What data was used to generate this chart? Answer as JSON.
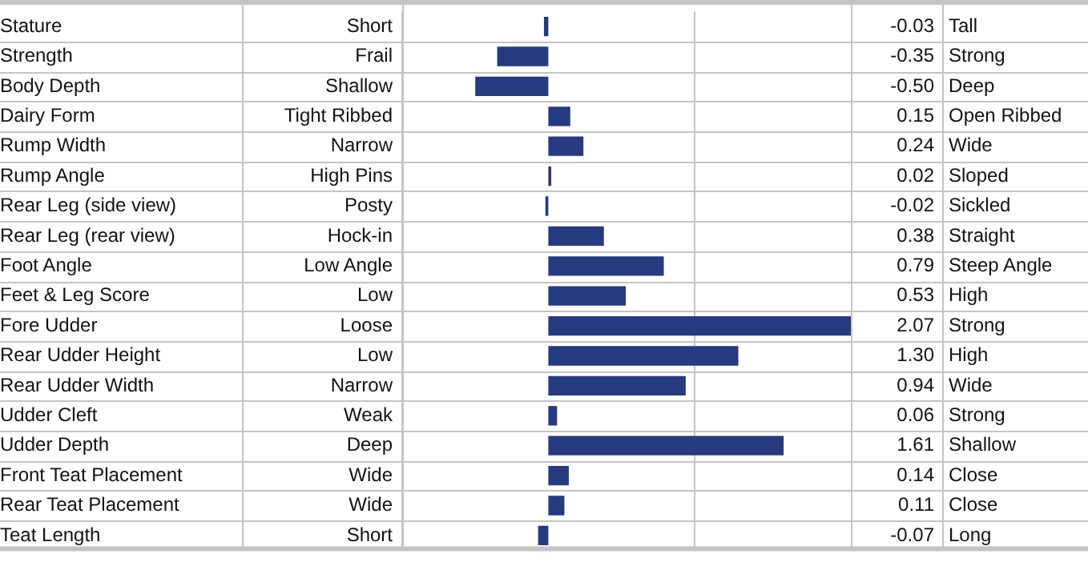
{
  "chart_data": {
    "type": "bar",
    "orientation": "horizontal",
    "categories": [
      "Stature",
      "Strength",
      "Body Depth",
      "Dairy Form",
      "Rump Width",
      "Rump Angle",
      "Rear Leg (side view)",
      "Rear Leg (rear view)",
      "Foot Angle",
      "Feet & Leg Score",
      "Fore Udder",
      "Rear Udder Height",
      "Rear Udder Width",
      "Udder Cleft",
      "Udder Depth",
      "Front Teat Placement",
      "Rear Teat Placement",
      "Teat Length"
    ],
    "values": [
      -0.03,
      -0.35,
      -0.5,
      0.15,
      0.24,
      0.02,
      -0.02,
      0.38,
      0.79,
      0.53,
      2.07,
      1.3,
      0.94,
      0.06,
      1.61,
      0.14,
      0.11,
      -0.07
    ],
    "value_labels": [
      "-0.03",
      "-0.35",
      "-0.50",
      "0.15",
      "0.24",
      "0.02",
      "-0.02",
      "0.38",
      "0.79",
      "0.53",
      "2.07",
      "1.30",
      "0.94",
      "0.06",
      "1.61",
      "0.14",
      "0.11",
      "-0.07"
    ],
    "color": "#253a7f",
    "xlim": [
      -1,
      2.07
    ],
    "xticks": [
      {
        "value": -1,
        "label": null
      },
      {
        "value": 1,
        "label": null
      }
    ],
    "grid": "x",
    "tick_labels": "y",
    "annotations": [
      "Short",
      "Frail",
      "Shallow",
      "Tight Ribbed",
      "Narrow",
      "High Pins",
      "Posty",
      "Hock-in",
      "Low Angle",
      "Low",
      "Loose",
      "Low",
      "Narrow",
      "Weak",
      "Deep",
      "Wide",
      "Wide",
      "Short",
      "Tall",
      "Strong",
      "Deep",
      "Open Ribbed",
      "Wide",
      "Sloped",
      "Sickled",
      "Straight",
      "Steep Angle",
      "High",
      "Strong",
      "High",
      "Wide",
      "Strong",
      "Shallow",
      "Close",
      "Close",
      "Long"
    ]
  }
}
